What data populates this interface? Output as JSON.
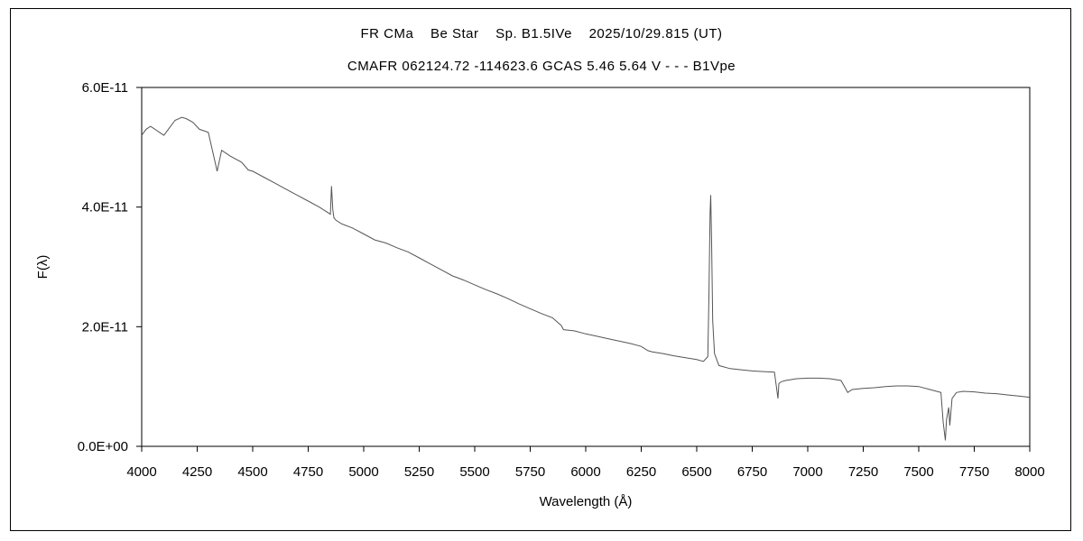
{
  "chart_data": {
    "type": "line",
    "title": "FR CMa    Be Star    Sp. B1.5IVe    2025/10/29.815 (UT)",
    "subtitle": "CMAFR 062124.72 -114623.6 GCAS 5.46 5.64 V - - - B1Vpe",
    "xlabel": "Wavelength (Å)",
    "ylabel": "F(λ)",
    "xlim": [
      4000,
      8000
    ],
    "ylim": [
      0,
      6e-11
    ],
    "x_ticks": [
      "4000",
      "4250",
      "4500",
      "4750",
      "5000",
      "5250",
      "5500",
      "5750",
      "6000",
      "6250",
      "6500",
      "6750",
      "7000",
      "7250",
      "7500",
      "7750",
      "8000"
    ],
    "y_ticks": [
      "0.0E+00",
      "2.0E-11",
      "4.0E-11",
      "6.0E-11"
    ],
    "grid": false,
    "line_color": "#555555",
    "series": [
      {
        "name": "",
        "x": [
          4000,
          4020,
          4040,
          4060,
          4080,
          4100,
          4120,
          4150,
          4180,
          4200,
          4230,
          4260,
          4300,
          4340,
          4360,
          4400,
          4450,
          4480,
          4500,
          4550,
          4600,
          4650,
          4700,
          4750,
          4800,
          4850,
          4855,
          4861,
          4866,
          4875,
          4900,
          4950,
          5000,
          5050,
          5100,
          5150,
          5200,
          5250,
          5300,
          5350,
          5400,
          5450,
          5500,
          5550,
          5600,
          5650,
          5700,
          5750,
          5800,
          5850,
          5890,
          5900,
          5950,
          6000,
          6050,
          6100,
          6150,
          6200,
          6250,
          6280,
          6300,
          6350,
          6400,
          6450,
          6500,
          6530,
          6550,
          6555,
          6560,
          6563,
          6567,
          6572,
          6580,
          6600,
          6650,
          6700,
          6750,
          6800,
          6850,
          6866,
          6870,
          6880,
          6900,
          6950,
          7000,
          7050,
          7100,
          7150,
          7180,
          7200,
          7250,
          7300,
          7350,
          7400,
          7450,
          7500,
          7550,
          7600,
          7610,
          7620,
          7625,
          7635,
          7640,
          7650,
          7670,
          7700,
          7750,
          7800,
          7850,
          7900,
          7950,
          8000
        ],
        "y": [
          5.2e-11,
          5.3e-11,
          5.35e-11,
          5.3e-11,
          5.25e-11,
          5.2e-11,
          5.3e-11,
          5.45e-11,
          5.5e-11,
          5.48e-11,
          5.42e-11,
          5.3e-11,
          5.25e-11,
          4.6e-11,
          4.95e-11,
          4.85e-11,
          4.75e-11,
          4.62e-11,
          4.6e-11,
          4.5e-11,
          4.4e-11,
          4.3e-11,
          4.2e-11,
          4.1e-11,
          4e-11,
          3.88e-11,
          4.35e-11,
          3.95e-11,
          3.82e-11,
          3.78e-11,
          3.72e-11,
          3.65e-11,
          3.55e-11,
          3.45e-11,
          3.4e-11,
          3.32e-11,
          3.25e-11,
          3.15e-11,
          3.05e-11,
          2.95e-11,
          2.85e-11,
          2.78e-11,
          2.7e-11,
          2.62e-11,
          2.55e-11,
          2.47e-11,
          2.38e-11,
          2.3e-11,
          2.22e-11,
          2.15e-11,
          2.02e-11,
          1.95e-11,
          1.93e-11,
          1.88e-11,
          1.84e-11,
          1.8e-11,
          1.76e-11,
          1.72e-11,
          1.67e-11,
          1.6e-11,
          1.58e-11,
          1.55e-11,
          1.51e-11,
          1.48e-11,
          1.45e-11,
          1.42e-11,
          1.5e-11,
          2.5e-11,
          3.9e-11,
          4.2e-11,
          3.4e-11,
          2.1e-11,
          1.55e-11,
          1.35e-11,
          1.3e-11,
          1.28e-11,
          1.26e-11,
          1.25e-11,
          1.24e-11,
          8e-12,
          1.05e-11,
          1.08e-11,
          1.1e-11,
          1.13e-11,
          1.14e-11,
          1.14e-11,
          1.13e-11,
          1.1e-11,
          9e-12,
          9.5e-12,
          9.7e-12,
          9.8e-12,
          1e-11,
          1.01e-11,
          1.01e-11,
          1e-11,
          9.5e-12,
          9e-12,
          4e-12,
          1e-12,
          4.5e-12,
          6.5e-12,
          3.5e-12,
          8e-12,
          9e-12,
          9.2e-12,
          9.1e-12,
          8.9e-12,
          8.8e-12,
          8.6e-12,
          8.4e-12,
          8.2e-12
        ]
      }
    ]
  }
}
